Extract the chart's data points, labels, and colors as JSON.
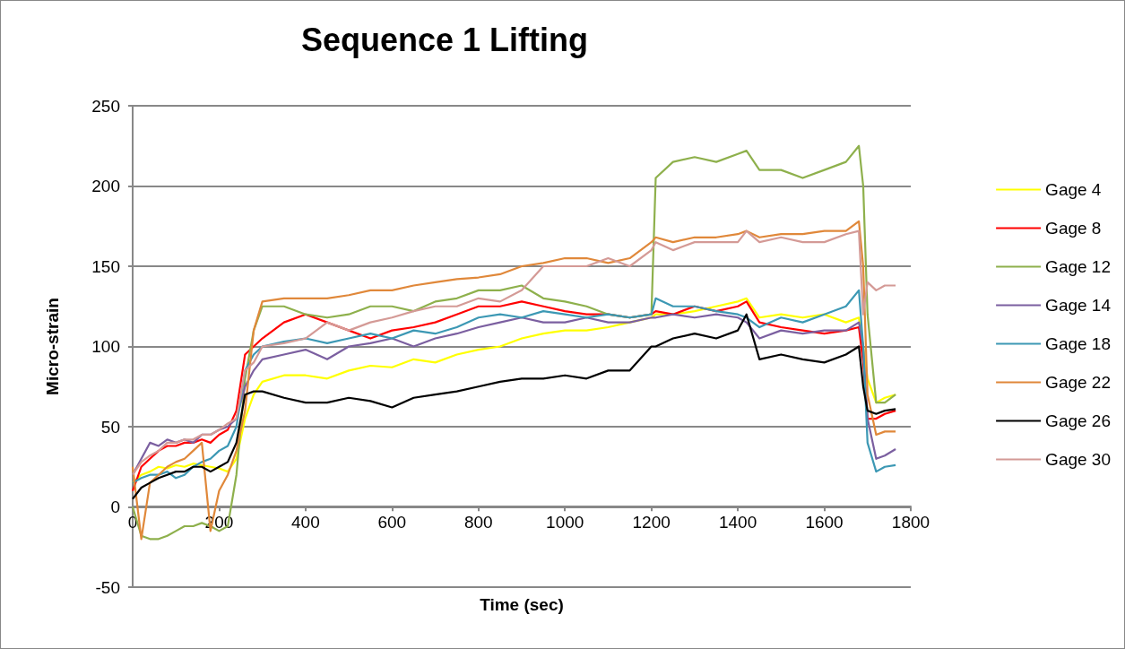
{
  "chart_data": {
    "type": "line",
    "title": "Sequence 1 Lifting",
    "xlabel": "Time (sec)",
    "ylabel": "Micro-strain",
    "xlim": [
      0,
      1800
    ],
    "xticks": [
      0,
      200,
      400,
      600,
      800,
      1000,
      1200,
      1400,
      1600,
      1800
    ],
    "ylim": [
      -50,
      250
    ],
    "yticks": [
      -50,
      0,
      50,
      100,
      150,
      200,
      250
    ],
    "grid": "y",
    "legend": "right",
    "marker": "none",
    "line_style": "solid",
    "x": [
      0,
      20,
      40,
      60,
      80,
      100,
      120,
      140,
      160,
      180,
      200,
      220,
      240,
      260,
      280,
      300,
      350,
      400,
      450,
      500,
      550,
      600,
      650,
      700,
      750,
      800,
      850,
      900,
      950,
      1000,
      1050,
      1100,
      1150,
      1200,
      1210,
      1250,
      1300,
      1350,
      1400,
      1420,
      1450,
      1500,
      1550,
      1600,
      1650,
      1680,
      1690,
      1700,
      1720,
      1740,
      1765
    ],
    "series": [
      {
        "name": "Gage 4",
        "color": "#ffff00",
        "values": [
          15,
          20,
          22,
          25,
          24,
          26,
          25,
          27,
          26,
          25,
          24,
          22,
          30,
          55,
          70,
          78,
          82,
          82,
          80,
          85,
          88,
          87,
          92,
          90,
          95,
          98,
          100,
          105,
          108,
          110,
          110,
          112,
          115,
          118,
          120,
          120,
          122,
          125,
          128,
          130,
          118,
          120,
          118,
          120,
          115,
          118,
          100,
          80,
          65,
          68,
          70
        ]
      },
      {
        "name": "Gage 8",
        "color": "#ff0000",
        "values": [
          10,
          25,
          30,
          35,
          38,
          38,
          40,
          40,
          42,
          40,
          45,
          48,
          60,
          95,
          100,
          105,
          115,
          120,
          115,
          110,
          105,
          110,
          112,
          115,
          120,
          125,
          125,
          128,
          125,
          122,
          120,
          120,
          118,
          120,
          122,
          120,
          125,
          122,
          125,
          128,
          115,
          112,
          110,
          108,
          110,
          112,
          90,
          55,
          55,
          58,
          60
        ]
      },
      {
        "name": "Gage 12",
        "color": "#8eb04c",
        "values": [
          0,
          -18,
          -20,
          -20,
          -18,
          -15,
          -12,
          -12,
          -10,
          -12,
          -15,
          -12,
          20,
          80,
          110,
          125,
          125,
          120,
          118,
          120,
          125,
          125,
          122,
          128,
          130,
          135,
          135,
          138,
          130,
          128,
          125,
          120,
          118,
          120,
          205,
          215,
          218,
          215,
          220,
          222,
          210,
          210,
          205,
          210,
          215,
          225,
          200,
          120,
          65,
          65,
          70
        ]
      },
      {
        "name": "Gage 14",
        "color": "#7b5fa0",
        "values": [
          20,
          30,
          40,
          38,
          42,
          40,
          42,
          40,
          45,
          45,
          48,
          50,
          55,
          75,
          85,
          92,
          95,
          98,
          92,
          100,
          102,
          105,
          100,
          105,
          108,
          112,
          115,
          118,
          115,
          115,
          118,
          115,
          115,
          118,
          118,
          120,
          118,
          120,
          118,
          115,
          105,
          110,
          108,
          110,
          110,
          115,
          100,
          55,
          30,
          32,
          36
        ]
      },
      {
        "name": "Gage 18",
        "color": "#3c98b4",
        "values": [
          15,
          18,
          20,
          20,
          22,
          18,
          20,
          25,
          28,
          30,
          35,
          38,
          50,
          85,
          95,
          100,
          103,
          105,
          102,
          105,
          108,
          105,
          110,
          108,
          112,
          118,
          120,
          118,
          122,
          120,
          118,
          120,
          118,
          120,
          130,
          125,
          125,
          122,
          120,
          118,
          112,
          118,
          115,
          120,
          125,
          135,
          100,
          40,
          22,
          25,
          26
        ]
      },
      {
        "name": "Gage 22",
        "color": "#e0883a",
        "values": [
          25,
          -20,
          15,
          20,
          25,
          28,
          30,
          35,
          40,
          -15,
          10,
          20,
          35,
          60,
          110,
          128,
          130,
          130,
          130,
          132,
          135,
          135,
          138,
          140,
          142,
          143,
          145,
          150,
          152,
          155,
          155,
          152,
          155,
          165,
          168,
          165,
          168,
          168,
          170,
          172,
          168,
          170,
          170,
          172,
          172,
          178,
          150,
          70,
          45,
          47,
          47
        ]
      },
      {
        "name": "Gage 26",
        "color": "#000000",
        "values": [
          5,
          12,
          15,
          18,
          20,
          22,
          22,
          25,
          25,
          22,
          25,
          28,
          40,
          70,
          72,
          72,
          68,
          65,
          65,
          68,
          66,
          62,
          68,
          70,
          72,
          75,
          78,
          80,
          80,
          82,
          80,
          85,
          85,
          100,
          100,
          105,
          108,
          105,
          110,
          120,
          92,
          95,
          92,
          90,
          95,
          100,
          75,
          60,
          58,
          60,
          61
        ]
      },
      {
        "name": "Gage 30",
        "color": "#d49a96",
        "values": [
          20,
          28,
          32,
          35,
          40,
          40,
          42,
          42,
          45,
          45,
          48,
          52,
          55,
          85,
          90,
          100,
          102,
          105,
          115,
          110,
          115,
          118,
          122,
          125,
          125,
          130,
          128,
          135,
          150,
          150,
          150,
          155,
          150,
          160,
          165,
          160,
          165,
          165,
          165,
          172,
          165,
          168,
          165,
          165,
          170,
          172,
          120,
          140,
          135,
          138,
          138
        ]
      }
    ]
  }
}
